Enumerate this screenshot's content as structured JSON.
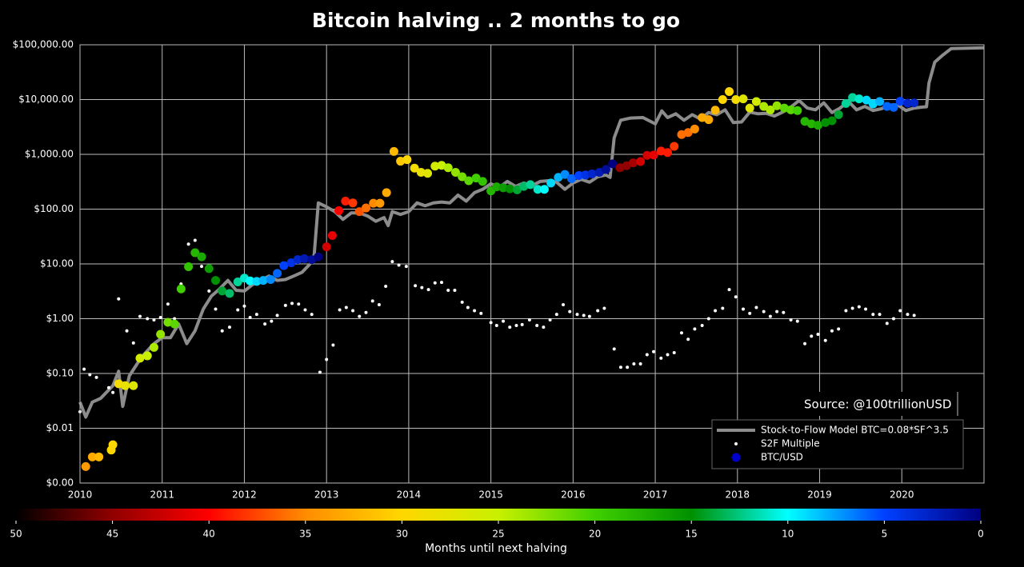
{
  "chart_data": {
    "type": "scatter",
    "title": "Bitcoin halving .. 2 months to go",
    "xlim": [
      2010,
      2021
    ],
    "xticks": [
      2010,
      2011,
      2012,
      2013,
      2014,
      2015,
      2016,
      2017,
      2018,
      2019,
      2020
    ],
    "ylim": [
      0.001,
      100000
    ],
    "log_y": true,
    "grid": true,
    "yticks": [
      {
        "value": 0.001,
        "label": "$0.00"
      },
      {
        "value": 0.01,
        "label": "$0.01"
      },
      {
        "value": 0.1,
        "label": "$0.10"
      },
      {
        "value": 1,
        "label": "$1.00"
      },
      {
        "value": 10,
        "label": "$10.00"
      },
      {
        "value": 100,
        "label": "$100.00"
      },
      {
        "value": 1000,
        "label": "$1,000.00"
      },
      {
        "value": 10000,
        "label": "$10,000.00"
      },
      {
        "value": 100000,
        "label": "$100,000.00"
      }
    ],
    "annotation": "Source: @100trillionUSD",
    "legend": "lower right",
    "series": [
      {
        "name": "Stock-to-Flow Model BTC=0.08*SF^3.5",
        "type": "line",
        "color": "#8c8c8c",
        "x": [
          2010.0,
          2010.07,
          2010.15,
          2010.25,
          2010.4,
          2010.47,
          2010.52,
          2010.6,
          2010.75,
          2010.9,
          2011.0,
          2011.1,
          2011.2,
          2011.3,
          2011.4,
          2011.5,
          2011.6,
          2011.7,
          2011.8,
          2011.9,
          2012.0,
          2012.1,
          2012.2,
          2012.3,
          2012.4,
          2012.5,
          2012.6,
          2012.7,
          2012.8,
          2012.85,
          2012.9,
          2013.0,
          2013.1,
          2013.2,
          2013.3,
          2013.4,
          2013.5,
          2013.6,
          2013.7,
          2013.75,
          2013.8,
          2013.9,
          2014.0,
          2014.1,
          2014.2,
          2014.3,
          2014.4,
          2014.5,
          2014.6,
          2014.7,
          2014.8,
          2014.9,
          2015.0,
          2015.1,
          2015.2,
          2015.3,
          2015.4,
          2015.5,
          2015.6,
          2015.7,
          2015.8,
          2015.9,
          2016.0,
          2016.1,
          2016.2,
          2016.3,
          2016.4,
          2016.45,
          2016.5,
          2016.58,
          2016.7,
          2016.85,
          2017.0,
          2017.08,
          2017.15,
          2017.25,
          2017.35,
          2017.45,
          2017.55,
          2017.65,
          2017.75,
          2017.85,
          2017.95,
          2018.05,
          2018.15,
          2018.25,
          2018.35,
          2018.45,
          2018.55,
          2018.65,
          2018.75,
          2018.85,
          2018.95,
          2019.05,
          2019.15,
          2019.25,
          2019.35,
          2019.45,
          2019.55,
          2019.65,
          2019.75,
          2019.85,
          2019.95,
          2020.05,
          2020.15,
          2020.25,
          2020.3,
          2020.33,
          2020.4,
          2020.5,
          2020.6,
          2021.0
        ],
        "values": [
          0.03,
          0.016,
          0.03,
          0.035,
          0.06,
          0.11,
          0.025,
          0.09,
          0.2,
          0.35,
          0.45,
          0.45,
          0.8,
          0.35,
          0.6,
          1.5,
          2.6,
          3.5,
          5,
          3.3,
          3.2,
          4.2,
          5,
          6,
          5,
          5.2,
          6,
          7,
          10,
          15,
          130,
          110,
          90,
          65,
          85,
          85,
          75,
          60,
          70,
          50,
          90,
          80,
          90,
          130,
          115,
          130,
          135,
          130,
          180,
          140,
          200,
          230,
          290,
          250,
          320,
          260,
          300,
          270,
          320,
          330,
          310,
          230,
          300,
          350,
          310,
          390,
          420,
          380,
          2000,
          4200,
          4600,
          4700,
          3600,
          6200,
          4700,
          5500,
          4200,
          5300,
          4400,
          5800,
          5300,
          6500,
          3800,
          3900,
          5900,
          5500,
          5600,
          5000,
          5900,
          7300,
          9600,
          7000,
          6500,
          8700,
          5800,
          7000,
          9300,
          6500,
          7500,
          6300,
          6800,
          7900,
          8000,
          6300,
          7000,
          7300,
          7400,
          20000,
          48000,
          65000,
          85000,
          88000
        ]
      },
      {
        "name": "S2F Multiple",
        "type": "scatter",
        "color": "#ffffff",
        "x": [
          2010.0,
          2010.05,
          2010.12,
          2010.2,
          2010.35,
          2010.4,
          2010.47,
          2010.57,
          2010.65,
          2010.73,
          2010.82,
          2010.9,
          2010.98,
          2011.07,
          2011.15,
          2011.23,
          2011.32,
          2011.4,
          2011.48,
          2011.57,
          2011.65,
          2011.73,
          2011.82,
          2011.92,
          2012.0,
          2012.07,
          2012.15,
          2012.25,
          2012.33,
          2012.4,
          2012.5,
          2012.58,
          2012.66,
          2012.74,
          2012.82,
          2012.92,
          2013.0,
          2013.08,
          2013.16,
          2013.24,
          2013.32,
          2013.4,
          2013.48,
          2013.56,
          2013.64,
          2013.72,
          2013.8,
          2013.88,
          2013.97,
          2014.08,
          2014.16,
          2014.24,
          2014.32,
          2014.4,
          2014.48,
          2014.56,
          2014.65,
          2014.72,
          2014.8,
          2014.88,
          2015.0,
          2015.07,
          2015.15,
          2015.23,
          2015.31,
          2015.38,
          2015.47,
          2015.56,
          2015.64,
          2015.72,
          2015.8,
          2015.88,
          2015.96,
          2016.05,
          2016.13,
          2016.2,
          2016.3,
          2016.38,
          2016.5,
          2016.58,
          2016.66,
          2016.74,
          2016.82,
          2016.9,
          2016.98,
          2017.07,
          2017.15,
          2017.23,
          2017.32,
          2017.4,
          2017.48,
          2017.57,
          2017.65,
          2017.73,
          2017.82,
          2017.9,
          2017.98,
          2018.07,
          2018.15,
          2018.23,
          2018.32,
          2018.4,
          2018.48,
          2018.56,
          2018.65,
          2018.73,
          2018.82,
          2018.9,
          2018.98,
          2019.07,
          2019.15,
          2019.23,
          2019.32,
          2019.4,
          2019.48,
          2019.56,
          2019.65,
          2019.73,
          2019.82,
          2019.9,
          2019.98,
          2020.07,
          2020.15
        ],
        "values": [
          0.02,
          0.12,
          0.095,
          0.085,
          0.055,
          0.045,
          2.3,
          0.6,
          0.36,
          1.1,
          1.0,
          0.95,
          1.05,
          1.85,
          1.0,
          4.3,
          23,
          27,
          9,
          3.2,
          1.5,
          0.6,
          0.7,
          1.45,
          1.7,
          1.05,
          1.2,
          0.8,
          0.9,
          1.15,
          1.75,
          1.9,
          1.85,
          1.45,
          1.2,
          0.105,
          0.18,
          0.33,
          1.45,
          1.6,
          1.4,
          1.1,
          1.3,
          2.1,
          1.8,
          3.9,
          11,
          9.5,
          9,
          4,
          3.7,
          3.4,
          4.5,
          4.6,
          3.3,
          3.3,
          2,
          1.6,
          1.4,
          1.25,
          0.85,
          0.75,
          0.9,
          0.7,
          0.75,
          0.78,
          0.95,
          0.75,
          0.7,
          0.95,
          1.2,
          1.8,
          1.35,
          1.2,
          1.15,
          1.1,
          1.4,
          1.55,
          0.28,
          0.13,
          0.13,
          0.15,
          0.15,
          0.22,
          0.25,
          0.19,
          0.22,
          0.24,
          0.55,
          0.42,
          0.65,
          0.75,
          1.0,
          1.4,
          1.55,
          3.4,
          2.5,
          1.5,
          1.25,
          1.6,
          1.35,
          1.1,
          1.35,
          1.3,
          0.95,
          0.9,
          0.35,
          0.48,
          0.52,
          0.4,
          0.6,
          0.65,
          1.4,
          1.55,
          1.65,
          1.5,
          1.2,
          1.2,
          0.82,
          1.0,
          1.4,
          1.2,
          1.15
        ]
      },
      {
        "name": "BTC/USD",
        "type": "scatter",
        "color": "#0000cc",
        "x": [
          2010.07,
          2010.15,
          2010.23,
          2010.38,
          2010.4,
          2010.47,
          2010.55,
          2010.65,
          2010.73,
          2010.82,
          2010.9,
          2010.98,
          2011.07,
          2011.15,
          2011.23,
          2011.32,
          2011.4,
          2011.48,
          2011.57,
          2011.65,
          2011.73,
          2011.82,
          2011.92,
          2012.0,
          2012.07,
          2012.15,
          2012.23,
          2012.32,
          2012.4,
          2012.48,
          2012.57,
          2012.65,
          2012.73,
          2012.82,
          2012.9,
          2013.0,
          2013.07,
          2013.15,
          2013.23,
          2013.32,
          2013.4,
          2013.48,
          2013.57,
          2013.65,
          2013.73,
          2013.82,
          2013.9,
          2013.98,
          2014.07,
          2014.15,
          2014.23,
          2014.32,
          2014.4,
          2014.48,
          2014.57,
          2014.65,
          2014.73,
          2014.82,
          2014.9,
          2015.0,
          2015.07,
          2015.15,
          2015.23,
          2015.32,
          2015.4,
          2015.48,
          2015.57,
          2015.65,
          2015.73,
          2015.82,
          2015.9,
          2015.98,
          2016.07,
          2016.15,
          2016.23,
          2016.32,
          2016.4,
          2016.48,
          2016.57,
          2016.65,
          2016.73,
          2016.82,
          2016.9,
          2016.98,
          2017.07,
          2017.15,
          2017.23,
          2017.32,
          2017.4,
          2017.48,
          2017.57,
          2017.65,
          2017.73,
          2017.82,
          2017.9,
          2017.98,
          2018.07,
          2018.15,
          2018.23,
          2018.32,
          2018.4,
          2018.48,
          2018.57,
          2018.65,
          2018.73,
          2018.82,
          2018.9,
          2018.98,
          2019.07,
          2019.15,
          2019.23,
          2019.32,
          2019.4,
          2019.48,
          2019.57,
          2019.65,
          2019.73,
          2019.82,
          2019.9,
          2019.98,
          2020.07,
          2020.15
        ],
        "values": [
          0.002,
          0.003,
          0.003,
          0.004,
          0.005,
          0.065,
          0.06,
          0.06,
          0.19,
          0.21,
          0.3,
          0.52,
          0.86,
          0.8,
          3.5,
          8.9,
          16,
          13.5,
          8.2,
          5.0,
          3.2,
          2.9,
          4.7,
          5.5,
          4.9,
          4.8,
          5.0,
          5.2,
          6.7,
          9.3,
          10.5,
          12,
          12.5,
          12,
          13.5,
          20.5,
          33,
          94,
          140,
          130,
          90,
          105,
          128,
          128,
          200,
          1130,
          750,
          800,
          560,
          470,
          450,
          610,
          630,
          570,
          470,
          390,
          330,
          370,
          320,
          215,
          255,
          245,
          235,
          225,
          260,
          280,
          230,
          230,
          300,
          380,
          430,
          360,
          410,
          420,
          440,
          470,
          530,
          670,
          570,
          620,
          700,
          740,
          960,
          970,
          1150,
          1080,
          1400,
          2300,
          2500,
          2900,
          4700,
          4300,
          6400,
          10000,
          14000,
          10000,
          10300,
          7000,
          9200,
          7500,
          6500,
          7700,
          7000,
          6500,
          6300,
          4000,
          3600,
          3400,
          3800,
          4100,
          5300,
          8500,
          10900,
          10300,
          9800,
          8300,
          9200,
          7500,
          7200,
          9300,
          8600,
          8700
        ],
        "months_until_halving": [
          34,
          33,
          32,
          30,
          30,
          29,
          28,
          27,
          26,
          25,
          24,
          23,
          22,
          21,
          20,
          19,
          18,
          17,
          16,
          15,
          14,
          13,
          12,
          11,
          10,
          9,
          8,
          7,
          6,
          5,
          4,
          3,
          2,
          1,
          0,
          42,
          41,
          40,
          39,
          38,
          37,
          36,
          35,
          34,
          33,
          32,
          31,
          30,
          29,
          28,
          27,
          26,
          25,
          24,
          23,
          22,
          21,
          20,
          19,
          18,
          17,
          16,
          15,
          14,
          13,
          12,
          11,
          10,
          9,
          8,
          7,
          6,
          5,
          4,
          3,
          2,
          1,
          0,
          45,
          45,
          44,
          42,
          42,
          41,
          39,
          39,
          38,
          36,
          36,
          35,
          33,
          33,
          32,
          30,
          30,
          29,
          27,
          27,
          26,
          24,
          24,
          23,
          21,
          21,
          20,
          18,
          18,
          17,
          15,
          15,
          14,
          12,
          12,
          11,
          9,
          9,
          8,
          6,
          6,
          5,
          3,
          3
        ]
      }
    ],
    "colorbar": {
      "label": "Months until next halving",
      "clim": [
        50,
        0
      ],
      "ticks": [
        50,
        45,
        40,
        35,
        30,
        25,
        20,
        15,
        10,
        5,
        0
      ],
      "colormap": [
        "#000000",
        "#900000",
        "#ff0000",
        "#ff8c00",
        "#ffd700",
        "#c8f000",
        "#40d000",
        "#009000",
        "#00ffff",
        "#0040ff",
        "#000080"
      ]
    }
  }
}
